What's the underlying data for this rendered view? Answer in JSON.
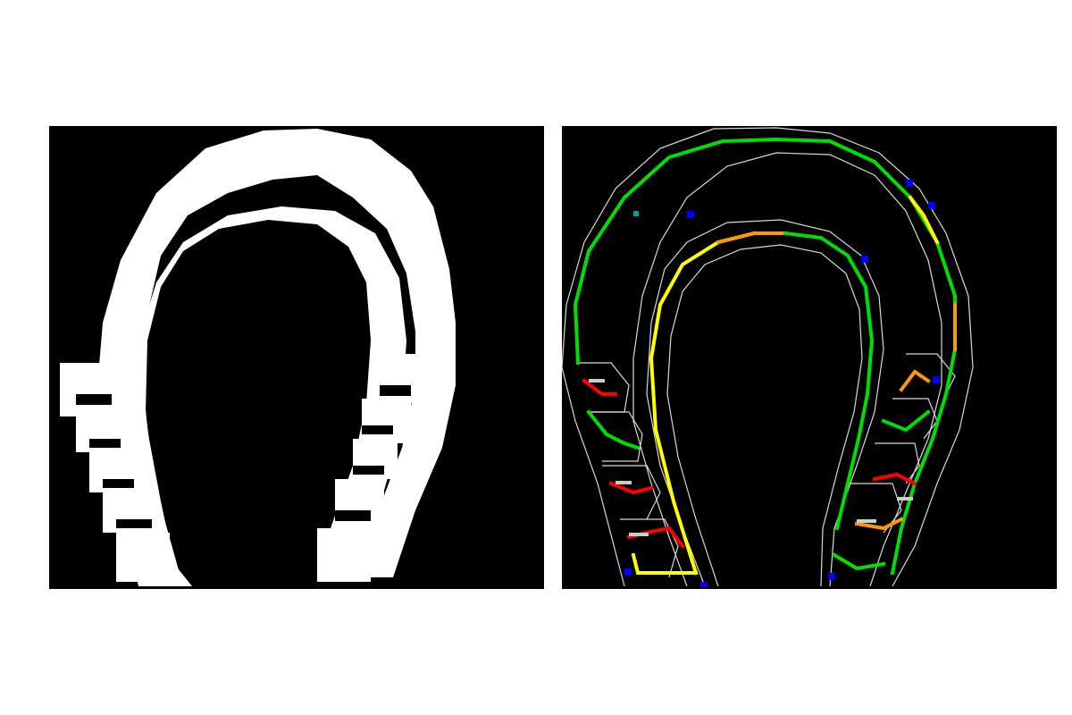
{
  "figure": {
    "panels": [
      {
        "id": "left",
        "content": "binary-horseshoe-mask"
      },
      {
        "id": "right",
        "content": "horseshoe-skeleton-with-contours"
      }
    ],
    "colors": {
      "background": "#000000",
      "page": "#ffffff",
      "mask": "#ffffff",
      "contour": "#d9d9d9",
      "skeleton_palette": [
        "#0000ff",
        "#00a0a0",
        "#00e000",
        "#80ff00",
        "#ffff00",
        "#ff9900",
        "#ff0000",
        "#cccccc"
      ]
    }
  }
}
